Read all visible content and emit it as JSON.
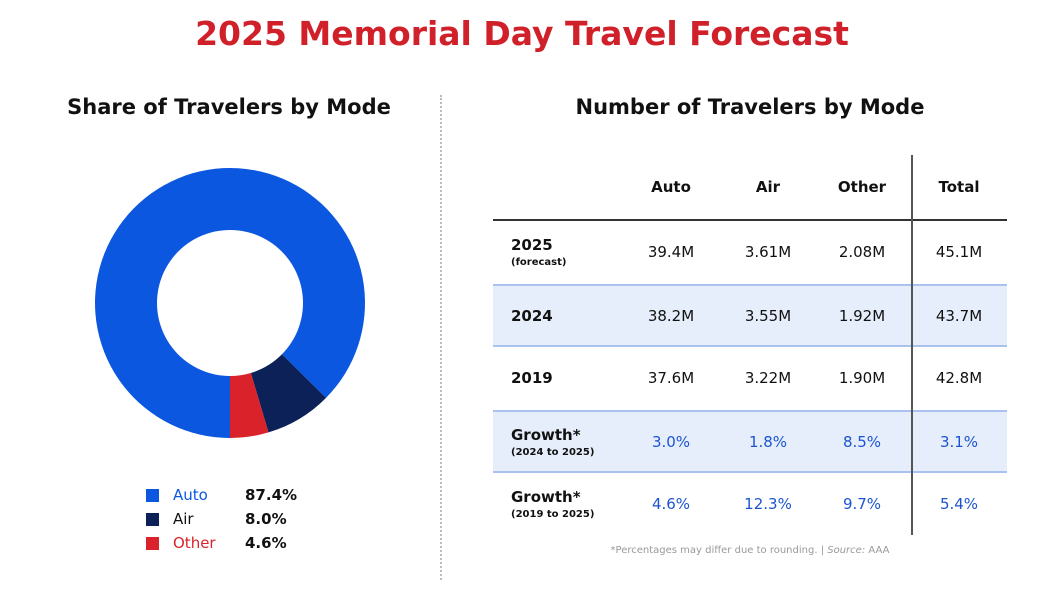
{
  "title": "2025 Memorial Day Travel Forecast",
  "colors": {
    "auto": "#0b57e0",
    "air": "#0b2158",
    "other": "#d9222a",
    "title": "#d0202a",
    "growth": "#1a55d0"
  },
  "chart_data": [
    {
      "type": "pie",
      "donut": true,
      "title": "Share of Travelers by Mode",
      "slices": [
        {
          "label": "Auto",
          "value": 87.4,
          "display": "87.4%"
        },
        {
          "label": "Air",
          "value": 8.0,
          "display": "8.0%"
        },
        {
          "label": "Other",
          "value": 4.6,
          "display": "4.6%"
        }
      ],
      "legend": "bottom"
    },
    {
      "type": "table",
      "title": "Number of Travelers by Mode",
      "columns": [
        "Auto",
        "Air",
        "Other",
        "Total"
      ],
      "rows": [
        {
          "label": "2025",
          "sublabel": "(forecast)",
          "values": [
            "39.4M",
            "3.61M",
            "2.08M",
            "45.1M"
          ]
        },
        {
          "label": "2024",
          "sublabel": "",
          "values": [
            "38.2M",
            "3.55M",
            "1.92M",
            "43.7M"
          ]
        },
        {
          "label": "2019",
          "sublabel": "",
          "values": [
            "37.6M",
            "3.22M",
            "1.90M",
            "42.8M"
          ]
        },
        {
          "label": "Growth*",
          "sublabel": "(2024 to 2025)",
          "values": [
            "3.0%",
            "1.8%",
            "8.5%",
            "3.1%"
          ]
        },
        {
          "label": "Growth*",
          "sublabel": "(2019 to 2025)",
          "values": [
            "4.6%",
            "12.3%",
            "9.7%",
            "5.4%"
          ]
        }
      ],
      "footnote": "*Percentages may differ due to rounding. | ",
      "source_label": "Source:",
      "source": "AAA"
    }
  ]
}
